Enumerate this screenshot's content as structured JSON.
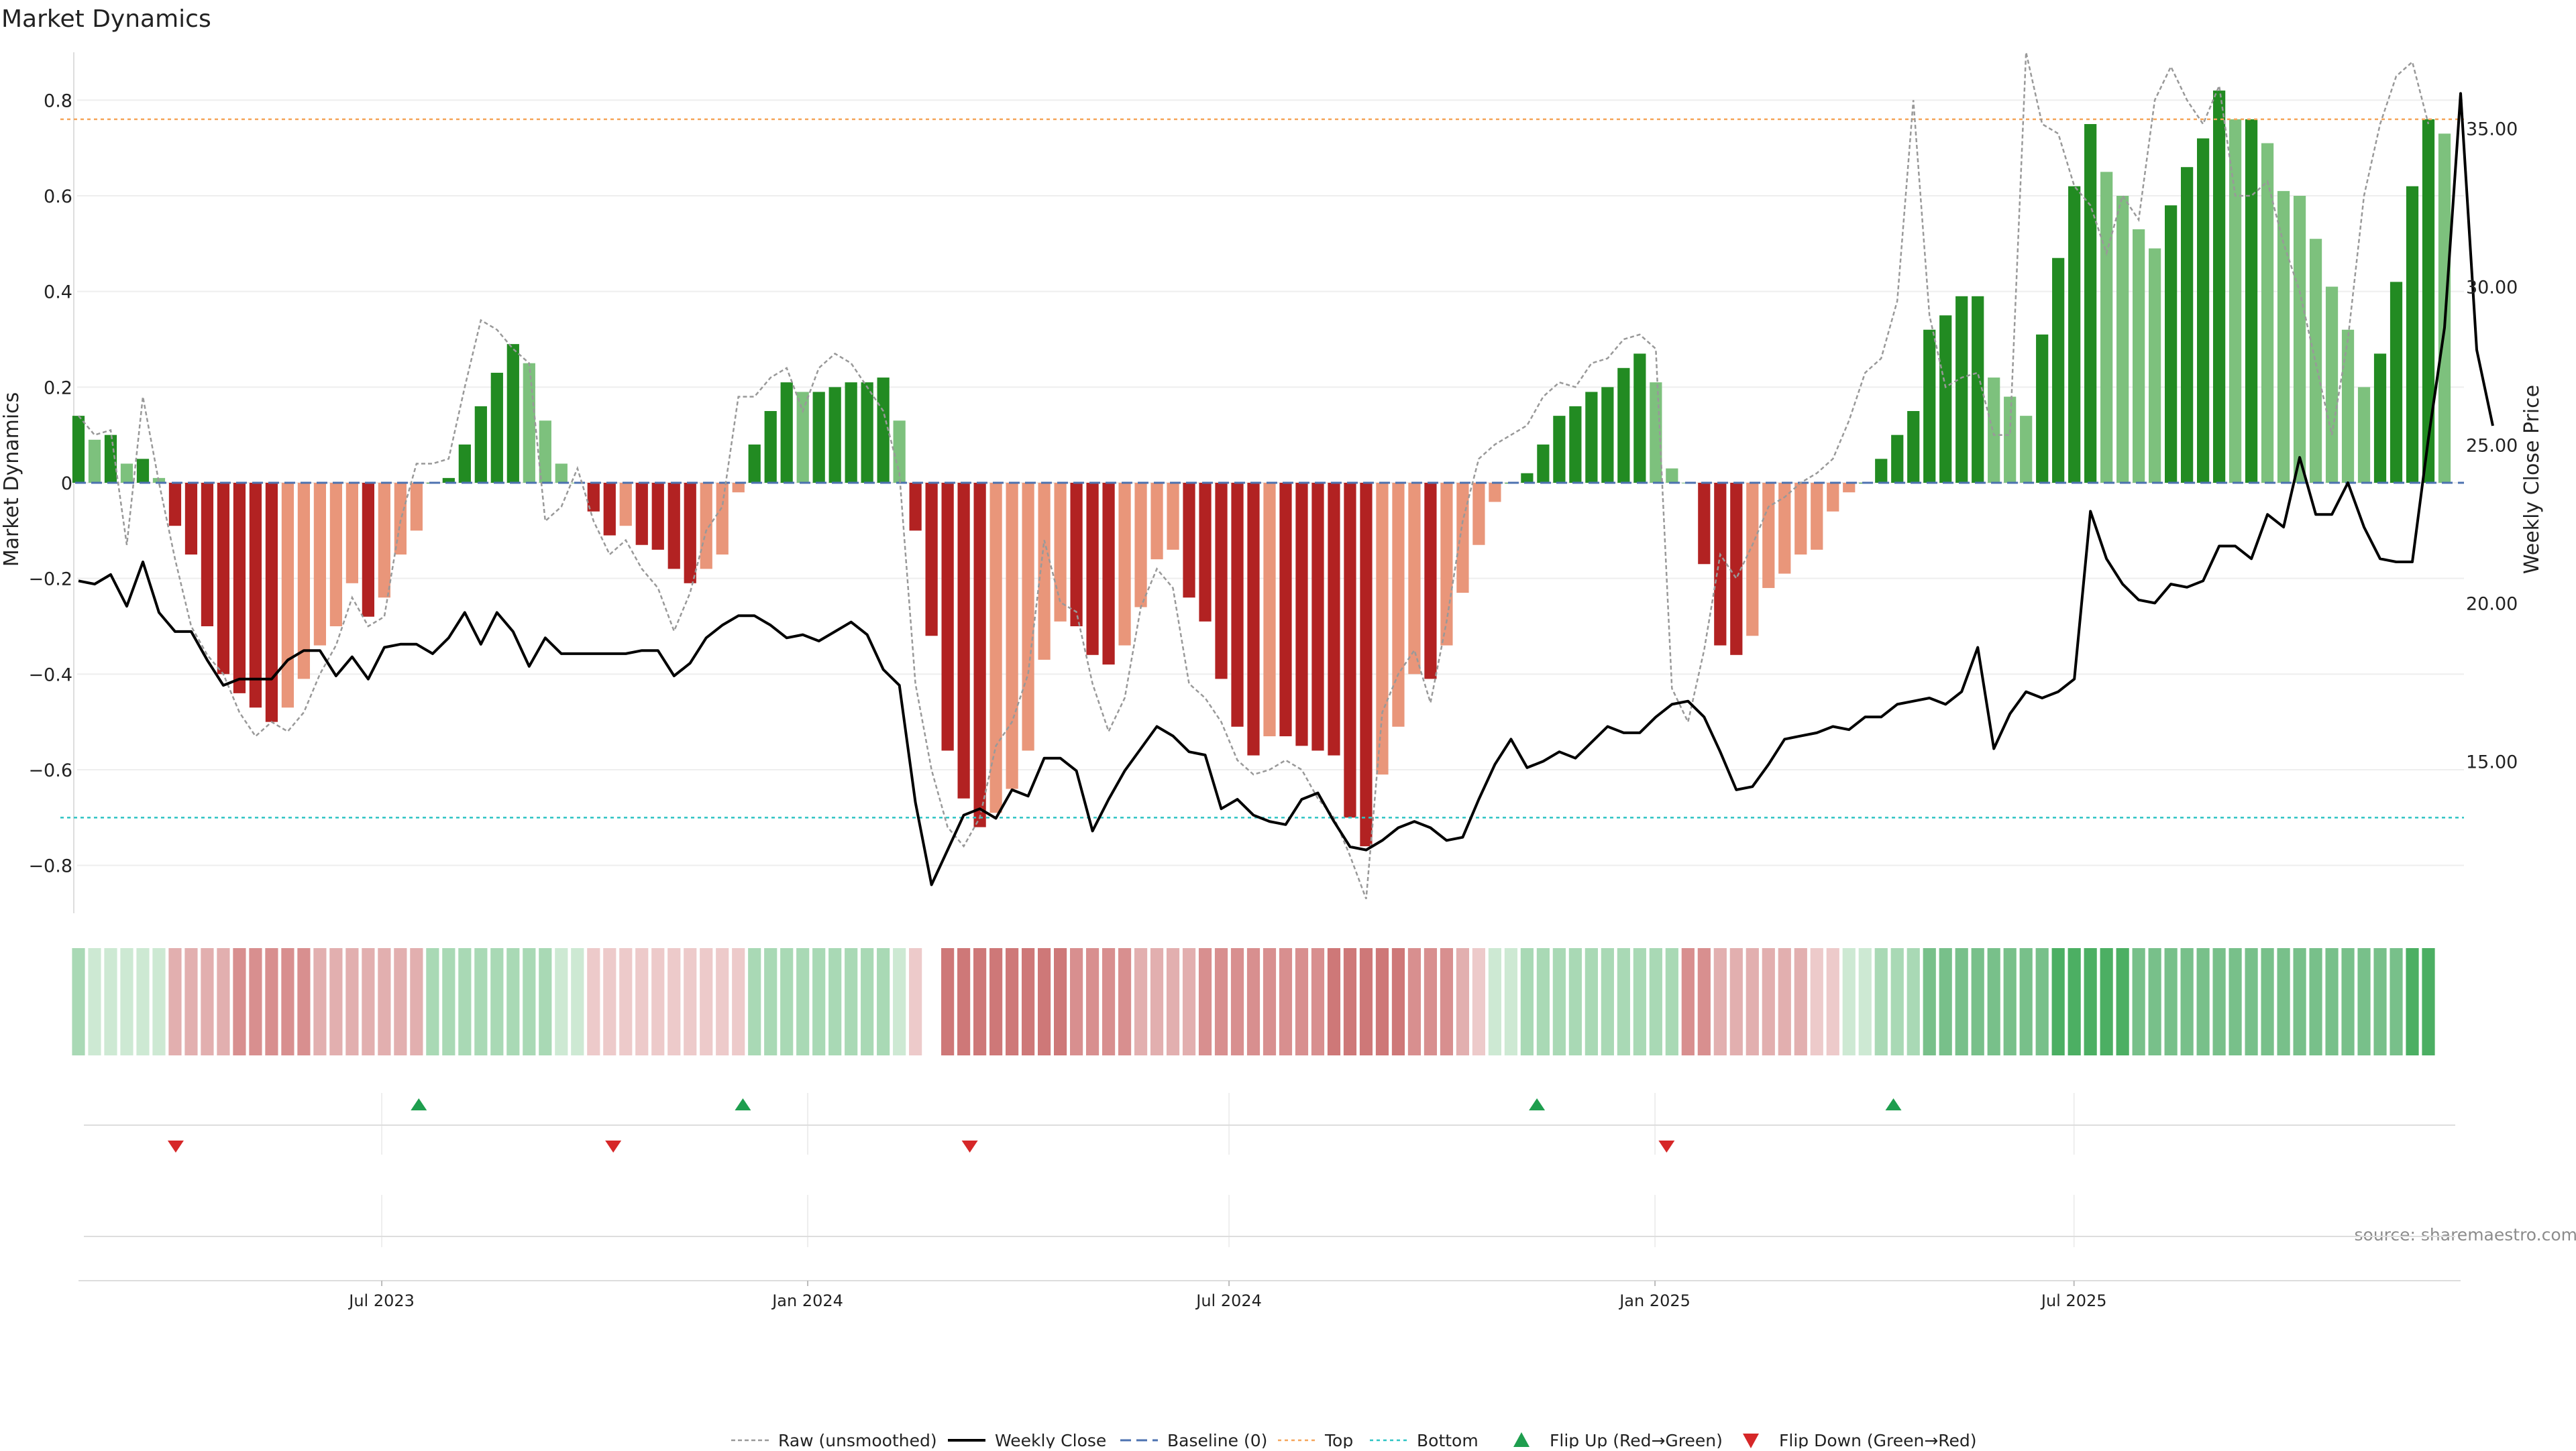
{
  "chart_data": {
    "type": "bar",
    "title": "Market Dynamics",
    "ylabel": "Market Dynamics",
    "y2label": "Weekly Close Price",
    "ylim": [
      -0.9,
      0.9
    ],
    "y2lim": [
      10.2,
      37.4
    ],
    "yticks": [
      "−0.8",
      "−0.6",
      "−0.4",
      "−0.2",
      "0",
      "0.2",
      "0.4",
      "0.6",
      "0.8"
    ],
    "yticks_values": [
      -0.8,
      -0.6,
      -0.4,
      -0.2,
      0,
      0.2,
      0.4,
      0.6,
      0.8
    ],
    "y2ticks": [
      "15.00",
      "20.00",
      "25.00",
      "30.00",
      "35.00"
    ],
    "y2ticks_values": [
      15,
      20,
      25,
      30,
      35
    ],
    "xticks": [
      "Jul 2023",
      "Jan 2024",
      "Jul 2024",
      "Jan 2025",
      "Jul 2025"
    ],
    "xticks_dates": [
      "2023-07-01",
      "2024-01-01",
      "2024-07-01",
      "2025-01-01",
      "2025-07-01"
    ],
    "x_dates": [
      "2023-02-20",
      "2025-12-15"
    ],
    "weeks": 149,
    "top_threshold": 0.76,
    "bottom_threshold": -0.7,
    "baseline": 0,
    "smoothed": [
      0.14,
      0.09,
      0.1,
      0.04,
      0.05,
      0.01,
      -0.09,
      -0.15,
      -0.3,
      -0.4,
      -0.44,
      -0.47,
      -0.5,
      -0.47,
      -0.41,
      -0.34,
      -0.3,
      -0.21,
      -0.28,
      -0.24,
      -0.15,
      -0.1,
      0.0,
      0.01,
      0.08,
      0.16,
      0.23,
      0.29,
      0.25,
      0.13,
      0.04,
      0.0,
      -0.06,
      -0.11,
      -0.09,
      -0.13,
      -0.14,
      -0.18,
      -0.21,
      -0.18,
      -0.15,
      -0.02,
      0.08,
      0.15,
      0.21,
      0.19,
      0.19,
      0.2,
      0.21,
      0.21,
      0.22,
      0.13,
      -0.1,
      -0.32,
      -0.56,
      -0.66,
      -0.72,
      -0.69,
      -0.64,
      -0.56,
      -0.37,
      -0.29,
      -0.3,
      -0.36,
      -0.38,
      -0.34,
      -0.26,
      -0.16,
      -0.14,
      -0.24,
      -0.29,
      -0.41,
      -0.51,
      -0.57,
      -0.53,
      -0.53,
      -0.55,
      -0.56,
      -0.57,
      -0.7,
      -0.76,
      -0.61,
      -0.51,
      -0.4,
      -0.41,
      -0.34,
      -0.23,
      -0.13,
      -0.04,
      0.0,
      0.02,
      0.08,
      0.14,
      0.16,
      0.19,
      0.2,
      0.24,
      0.27,
      0.21,
      0.03,
      0.0,
      -0.17,
      -0.34,
      -0.36,
      -0.32,
      -0.22,
      -0.19,
      -0.15,
      -0.14,
      -0.06,
      -0.02,
      0.0,
      0.05,
      0.1,
      0.15,
      0.32,
      0.35,
      0.39,
      0.39,
      0.22,
      0.18,
      0.14,
      0.31,
      0.47,
      0.62,
      0.75,
      0.65,
      0.6,
      0.53,
      0.49,
      0.58,
      0.66,
      0.72,
      0.82,
      0.76,
      0.76,
      0.71,
      0.61,
      0.6,
      0.51,
      0.41,
      0.32,
      0.2,
      0.27,
      0.42,
      0.62,
      0.76,
      0.73
    ],
    "raw": [
      0.14,
      0.1,
      0.11,
      -0.13,
      0.18,
      0.0,
      -0.16,
      -0.3,
      -0.36,
      -0.4,
      -0.48,
      -0.53,
      -0.5,
      -0.52,
      -0.48,
      -0.4,
      -0.34,
      -0.24,
      -0.3,
      -0.28,
      -0.08,
      0.04,
      0.04,
      0.05,
      0.2,
      0.34,
      0.32,
      0.28,
      0.25,
      -0.08,
      -0.05,
      0.03,
      -0.08,
      -0.15,
      -0.12,
      -0.18,
      -0.22,
      -0.31,
      -0.23,
      -0.1,
      -0.05,
      0.18,
      0.18,
      0.22,
      0.24,
      0.15,
      0.24,
      0.27,
      0.25,
      0.2,
      0.15,
      0.02,
      -0.42,
      -0.6,
      -0.72,
      -0.76,
      -0.7,
      -0.55,
      -0.5,
      -0.4,
      -0.12,
      -0.25,
      -0.27,
      -0.42,
      -0.52,
      -0.45,
      -0.26,
      -0.18,
      -0.22,
      -0.42,
      -0.45,
      -0.5,
      -0.58,
      -0.61,
      -0.6,
      -0.58,
      -0.6,
      -0.66,
      -0.7,
      -0.78,
      -0.87,
      -0.48,
      -0.4,
      -0.35,
      -0.46,
      -0.29,
      -0.08,
      0.05,
      0.08,
      0.1,
      0.12,
      0.18,
      0.21,
      0.2,
      0.25,
      0.26,
      0.3,
      0.31,
      0.28,
      -0.43,
      -0.5,
      -0.35,
      -0.15,
      -0.2,
      -0.13,
      -0.05,
      -0.03,
      0.0,
      0.02,
      0.05,
      0.13,
      0.23,
      0.26,
      0.38,
      0.8,
      0.35,
      0.2,
      0.22,
      0.23,
      0.1,
      0.1,
      0.9,
      0.75,
      0.73,
      0.62,
      0.58,
      0.48,
      0.6,
      0.55,
      0.8,
      0.87,
      0.8,
      0.75,
      0.83,
      0.6,
      0.6,
      0.63,
      0.5,
      0.4,
      0.25,
      0.1,
      0.3,
      0.6,
      0.75,
      0.85,
      0.88,
      0.75
    ],
    "price": [
      20.7,
      20.6,
      20.9,
      19.9,
      21.3,
      19.7,
      19.1,
      19.1,
      18.2,
      17.4,
      17.6,
      17.6,
      17.6,
      18.2,
      18.5,
      18.5,
      17.7,
      18.3,
      17.6,
      18.6,
      18.7,
      18.7,
      18.4,
      18.9,
      19.7,
      18.7,
      19.7,
      19.1,
      18.0,
      18.9,
      18.4,
      18.4,
      18.4,
      18.4,
      18.4,
      18.5,
      18.5,
      17.7,
      18.1,
      18.9,
      19.3,
      19.6,
      19.6,
      19.3,
      18.9,
      19.0,
      18.8,
      19.1,
      19.4,
      19.0,
      17.9,
      17.4,
      13.7,
      11.1,
      12.2,
      13.3,
      13.5,
      13.2,
      14.1,
      13.9,
      15.1,
      15.1,
      14.7,
      12.8,
      13.8,
      14.7,
      15.4,
      16.1,
      15.8,
      15.3,
      15.2,
      13.5,
      13.8,
      13.3,
      13.1,
      13.0,
      13.8,
      14.0,
      13.1,
      12.3,
      12.2,
      12.5,
      12.9,
      13.1,
      12.9,
      12.5,
      12.6,
      13.8,
      14.9,
      15.7,
      14.8,
      15.0,
      15.3,
      15.1,
      15.6,
      16.1,
      15.9,
      15.9,
      16.4,
      16.8,
      16.9,
      16.4,
      15.3,
      14.1,
      14.2,
      14.9,
      15.7,
      15.8,
      15.9,
      16.1,
      16.0,
      16.4,
      16.4,
      16.8,
      16.9,
      17.0,
      16.8,
      17.2,
      18.6,
      15.4,
      16.5,
      17.2,
      17.0,
      17.2,
      17.6,
      22.9,
      21.4,
      20.6,
      20.1,
      20.0,
      20.6,
      20.5,
      20.7,
      21.8,
      21.8,
      21.4,
      22.8,
      22.4,
      24.6,
      22.8,
      22.8,
      23.8,
      22.4,
      21.4,
      21.3,
      21.3,
      25.2,
      28.7,
      36.1,
      28.0,
      25.6
    ],
    "strip_bins": [
      2,
      1,
      1,
      1,
      1,
      1,
      -2,
      -2,
      -2,
      -2,
      -3,
      -3,
      -3,
      -3,
      -3,
      -2,
      -2,
      -2,
      -2,
      -2,
      -2,
      -2,
      2,
      2,
      2,
      2,
      2,
      2,
      2,
      2,
      1,
      1,
      -1,
      -1,
      -1,
      -1,
      -1,
      -1,
      -1,
      -1,
      -1,
      -1,
      2,
      2,
      2,
      2,
      2,
      2,
      2,
      2,
      2,
      1,
      -1,
      0,
      -4,
      -4,
      -4,
      -4,
      -4,
      -4,
      -4,
      -4,
      -3,
      -3,
      -3,
      -3,
      -2,
      -2,
      -2,
      -2,
      -3,
      -3,
      -3,
      -3,
      -3,
      -3,
      -3,
      -3,
      -4,
      -4,
      -4,
      -4,
      -4,
      -3,
      -3,
      -3,
      -2,
      -1,
      1,
      1,
      2,
      2,
      2,
      2,
      2,
      2,
      2,
      2,
      2,
      2,
      -3,
      -3,
      -2,
      -2,
      -2,
      -2,
      -2,
      -2,
      -1,
      -1,
      1,
      1,
      2,
      2,
      2,
      3,
      3,
      3,
      3,
      3,
      3,
      3,
      3,
      4,
      4,
      4,
      4,
      4,
      3,
      3,
      3,
      3,
      3,
      3,
      3,
      3,
      3,
      3,
      3,
      3,
      3,
      3,
      3,
      3,
      3,
      4,
      4
    ],
    "flip_up": [
      "2023-07-17",
      "2023-12-04",
      "2024-11-11",
      "2025-04-14"
    ],
    "flip_down": [
      "2023-04-03",
      "2023-10-09",
      "2024-03-11",
      "2025-01-06"
    ],
    "legend": [
      "Raw (unsmoothed)",
      "Weekly Close",
      "Baseline (0)",
      "Top",
      "Bottom",
      "Flip Up (Red→Green)",
      "Flip Down (Green→Red)"
    ],
    "legend_position": "bottom-center",
    "source": "source: sharemaestro.com",
    "grid": true
  },
  "colors": {
    "dark_green": "#228B22",
    "light_green": "#7DC17D",
    "dark_red": "#B22222",
    "light_red": "#E9967A",
    "raw_line": "#999999",
    "price_line": "#000000",
    "baseline": "#4C72B0",
    "top": "#F5A55A",
    "bottom": "#2EC4C4",
    "flip_up": "#1E9E4E",
    "flip_down": "#D62728"
  }
}
